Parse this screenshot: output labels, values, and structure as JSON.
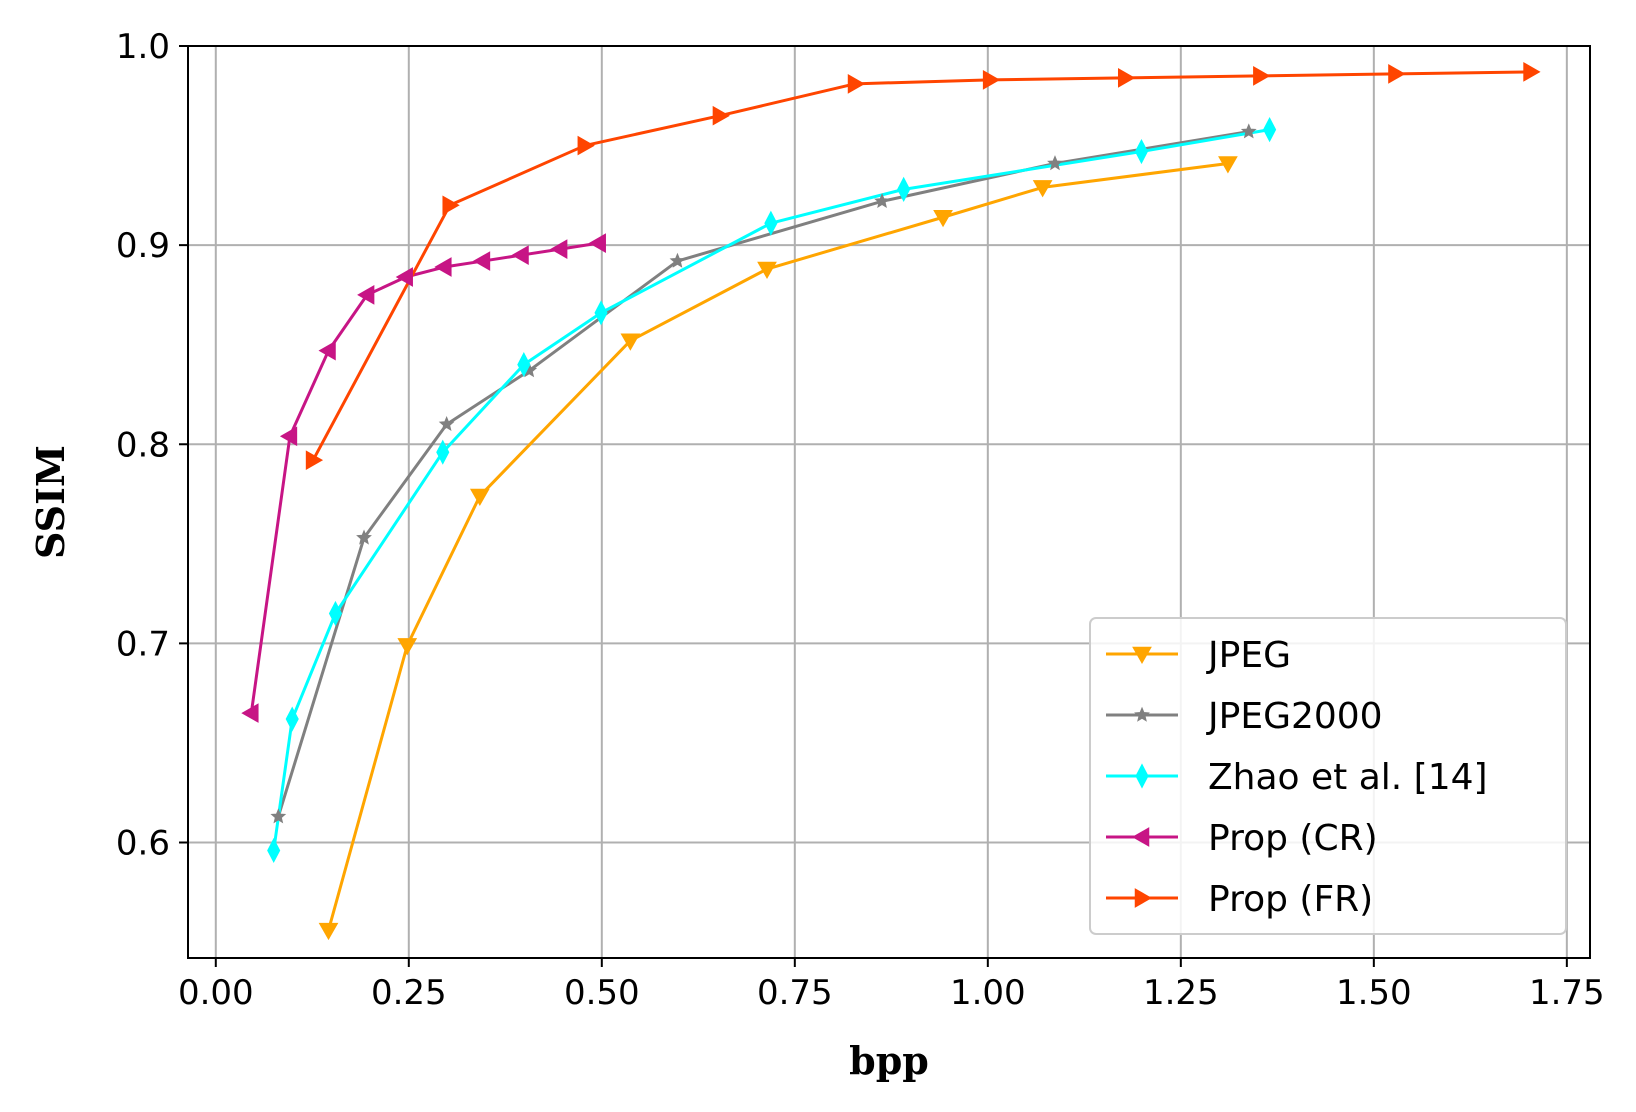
{
  "chart_data": {
    "type": "line",
    "xlabel": "bpp",
    "ylabel": "SSIM",
    "xlim": [
      -0.036,
      1.78
    ],
    "ylim": [
      0.542,
      1.0
    ],
    "xticks": [
      "0.00",
      "0.25",
      "0.50",
      "0.75",
      "1.00",
      "1.25",
      "1.50",
      "1.75"
    ],
    "xtick_values": [
      0,
      0.25,
      0.5,
      0.75,
      1.0,
      1.25,
      1.5,
      1.75
    ],
    "yticks": [
      "0.6",
      "0.7",
      "0.8",
      "0.9",
      "1.0"
    ],
    "ytick_values": [
      0.6,
      0.7,
      0.8,
      0.9,
      1.0
    ],
    "grid": true,
    "legend_position": "bottom-right",
    "series": [
      {
        "name": "JPEG",
        "color": "#ffa500",
        "marker": "triangle-down",
        "x": [
          0.146,
          0.248,
          0.342,
          0.537,
          0.714,
          0.942,
          1.071,
          1.311
        ],
        "y": [
          0.556,
          0.699,
          0.774,
          0.852,
          0.888,
          0.914,
          0.929,
          0.941
        ]
      },
      {
        "name": "JPEG2000",
        "color": "#808080",
        "marker": "star",
        "x": [
          0.081,
          0.192,
          0.299,
          0.406,
          0.598,
          0.863,
          1.087,
          1.338
        ],
        "y": [
          0.613,
          0.753,
          0.81,
          0.837,
          0.892,
          0.922,
          0.941,
          0.957
        ]
      },
      {
        "name": "Zhao et al. [14]",
        "color": "#00ffff",
        "marker": "thin-diamond",
        "x": [
          0.075,
          0.099,
          0.155,
          0.294,
          0.399,
          0.499,
          0.719,
          0.891,
          1.199,
          1.365
        ],
        "y": [
          0.596,
          0.662,
          0.715,
          0.796,
          0.84,
          0.866,
          0.911,
          0.928,
          0.947,
          0.958
        ]
      },
      {
        "name": "Prop (CR)",
        "color": "#c71585",
        "marker": "triangle-left",
        "x": [
          0.046,
          0.096,
          0.146,
          0.196,
          0.246,
          0.296,
          0.346,
          0.396,
          0.446,
          0.496
        ],
        "y": [
          0.665,
          0.804,
          0.847,
          0.875,
          0.884,
          0.889,
          0.892,
          0.895,
          0.898,
          0.901
        ]
      },
      {
        "name": "Prop (FR)",
        "color": "#ff4500",
        "marker": "triangle-right",
        "x": [
          0.126,
          0.303,
          0.478,
          0.653,
          0.828,
          1.003,
          1.178,
          1.353,
          1.528,
          1.703
        ],
        "y": [
          0.792,
          0.92,
          0.95,
          0.965,
          0.981,
          0.983,
          0.984,
          0.985,
          0.986,
          0.987
        ]
      }
    ]
  }
}
